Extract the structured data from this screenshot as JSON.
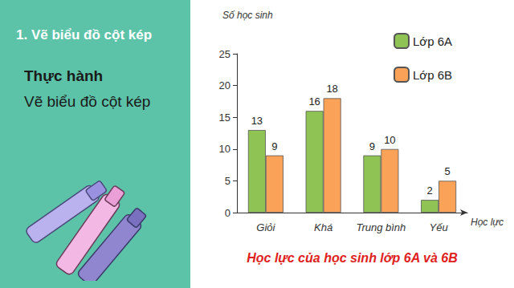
{
  "panel": {
    "heading": "1. Vẽ biểu đồ cột kép",
    "subheading": "Thực hành",
    "text": "Vẽ biểu đồ cột kép"
  },
  "chart_data": {
    "type": "bar",
    "title": "Học lực của học sinh lớp 6A và 6B",
    "x_label": "Học lực",
    "y_label": "Số học sinh",
    "categories": [
      "Giỏi",
      "Khá",
      "Trung bình",
      "Yếu"
    ],
    "series": [
      {
        "name": "Lớp 6A",
        "color": "#8fc454",
        "values": [
          13,
          16,
          9,
          2
        ]
      },
      {
        "name": "Lớp 6B",
        "color": "#f9a258",
        "values": [
          9,
          18,
          10,
          5
        ]
      }
    ],
    "ylim": [
      0,
      25
    ],
    "yticks": [
      0,
      5,
      10,
      15,
      20,
      25
    ],
    "grid": false,
    "legend": "top-right",
    "data_labels": true
  }
}
